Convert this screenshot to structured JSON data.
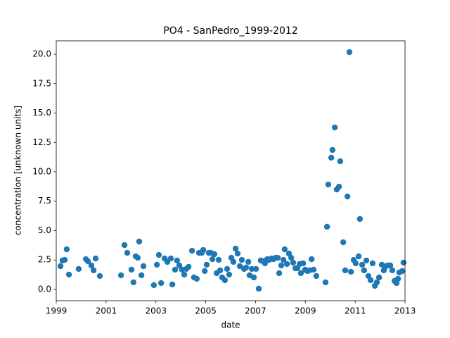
{
  "chart_data": {
    "type": "scatter",
    "title": "PO4 - SanPedro_1999-2012",
    "x_label": "date",
    "y_label": "concentration [unknown units]",
    "color": "#1f77b4",
    "xlim": [
      1999,
      2013
    ],
    "xticks": [
      1999,
      2001,
      2003,
      2005,
      2007,
      2009,
      2011,
      2013
    ],
    "ylim": [
      -0.96,
      21.14
    ],
    "yticks": [
      {
        "value": 0,
        "label": "0.0"
      },
      {
        "value": 2.5,
        "label": "2.5"
      },
      {
        "value": 5,
        "label": "5.0"
      },
      {
        "value": 7.5,
        "label": "7.5"
      },
      {
        "value": 10,
        "label": "10.0"
      },
      {
        "value": 12.5,
        "label": "12.5"
      },
      {
        "value": 15,
        "label": "15.0"
      },
      {
        "value": 17.5,
        "label": "17.5"
      },
      {
        "value": 20,
        "label": "20.0"
      }
    ],
    "x": [
      1999.17,
      1999.25,
      1999.34,
      1999.42,
      1999.51,
      1999.9,
      2000.19,
      2000.27,
      2000.41,
      2000.5,
      2000.58,
      2000.75,
      2001.6,
      2001.74,
      2001.85,
      2002.02,
      2002.1,
      2002.19,
      2002.27,
      2002.33,
      2002.42,
      2002.5,
      2002.92,
      2003.04,
      2003.12,
      2003.21,
      2003.35,
      2003.46,
      2003.6,
      2003.66,
      2003.77,
      2003.85,
      2003.94,
      2004.05,
      2004.14,
      2004.22,
      2004.31,
      2004.45,
      2004.53,
      2004.64,
      2004.73,
      2004.84,
      2004.9,
      2004.96,
      2005.04,
      2005.12,
      2005.21,
      2005.27,
      2005.35,
      2005.44,
      2005.52,
      2005.58,
      2005.66,
      2005.77,
      2005.86,
      2005.94,
      2006.03,
      2006.11,
      2006.2,
      2006.28,
      2006.37,
      2006.45,
      2006.54,
      2006.62,
      2006.71,
      2006.76,
      2006.85,
      2006.93,
      2007.02,
      2007.13,
      2007.21,
      2007.3,
      2007.38,
      2007.47,
      2007.55,
      2007.64,
      2007.72,
      2007.81,
      2007.89,
      2007.95,
      2008.03,
      2008.12,
      2008.17,
      2008.26,
      2008.34,
      2008.43,
      2008.51,
      2008.6,
      2008.68,
      2008.77,
      2008.82,
      2008.91,
      2008.99,
      2009.08,
      2009.16,
      2009.25,
      2009.33,
      2009.44,
      2009.81,
      2009.87,
      2009.92,
      2010.04,
      2010.09,
      2010.18,
      2010.26,
      2010.35,
      2010.4,
      2010.52,
      2010.6,
      2010.69,
      2010.77,
      2010.83,
      2010.94,
      2011.02,
      2011.14,
      2011.19,
      2011.28,
      2011.36,
      2011.45,
      2011.53,
      2011.62,
      2011.7,
      2011.79,
      2011.87,
      2011.96,
      2012.07,
      2012.15,
      2012.24,
      2012.32,
      2012.41,
      2012.49,
      2012.58,
      2012.66,
      2012.72,
      2012.77,
      2012.89,
      2012.94
    ],
    "values": [
      1.98,
      2.46,
      2.51,
      3.41,
      1.26,
      1.74,
      2.57,
      2.4,
      2.04,
      1.62,
      2.63,
      1.14,
      1.2,
      3.77,
      3.11,
      1.68,
      0.6,
      2.81,
      2.69,
      4.07,
      1.2,
      1.98,
      0.36,
      2.1,
      2.93,
      0.54,
      2.63,
      2.34,
      2.63,
      0.42,
      1.68,
      2.46,
      2.04,
      1.68,
      1.26,
      1.74,
      1.92,
      3.29,
      1.02,
      0.9,
      3.11,
      3.11,
      3.35,
      1.56,
      2.1,
      3.11,
      3.11,
      2.57,
      2.99,
      1.38,
      2.51,
      1.62,
      1.02,
      0.78,
      1.74,
      1.26,
      2.69,
      2.34,
      3.47,
      3.05,
      1.98,
      2.51,
      1.74,
      1.86,
      2.34,
      1.2,
      1.74,
      1.02,
      1.74,
      0.06,
      2.46,
      2.4,
      2.22,
      2.57,
      2.51,
      2.63,
      2.57,
      2.69,
      2.69,
      1.38,
      2.04,
      2.51,
      3.41,
      2.16,
      3.05,
      2.69,
      2.28,
      1.8,
      1.8,
      2.16,
      1.38,
      2.22,
      1.68,
      1.56,
      1.62,
      2.57,
      1.68,
      1.14,
      0.6,
      5.33,
      8.92,
      11.2,
      11.86,
      13.77,
      8.5,
      8.74,
      10.9,
      4.01,
      1.62,
      7.9,
      20.18,
      1.5,
      2.51,
      2.22,
      2.81,
      5.99,
      2.1,
      1.62,
      2.46,
      1.14,
      0.78,
      2.22,
      0.3,
      0.6,
      1.02,
      2.1,
      1.62,
      1.98,
      2.04,
      2.04,
      1.62,
      0.72,
      0.54,
      0.9,
      1.44,
      1.56,
      2.28
    ]
  }
}
